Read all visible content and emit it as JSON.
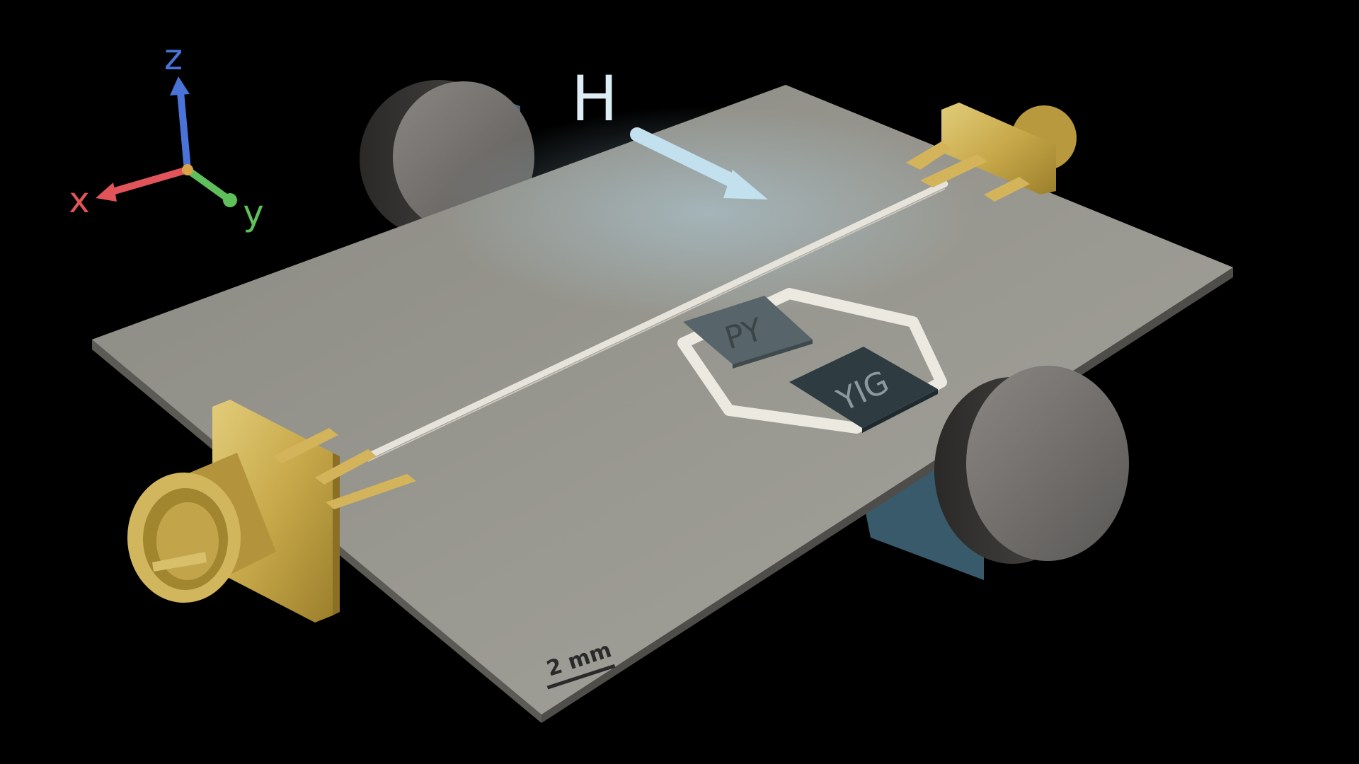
{
  "axes": {
    "x_label": "x",
    "y_label": "y",
    "z_label": "z",
    "x_color": "#e0545a",
    "y_color": "#5fbf5a",
    "z_color": "#4a73d8"
  },
  "field": {
    "label": "H",
    "arrow_color": "#c3e0ee"
  },
  "samples": {
    "py_label": "PY",
    "yig_label": "YIG"
  },
  "scale_bar": {
    "label": "2 mm"
  },
  "colors": {
    "background": "#000000",
    "substrate": "#8f8e87",
    "gold": "#c8a94a",
    "magnet": "#6b6966",
    "stripline": "#e6e3da"
  }
}
